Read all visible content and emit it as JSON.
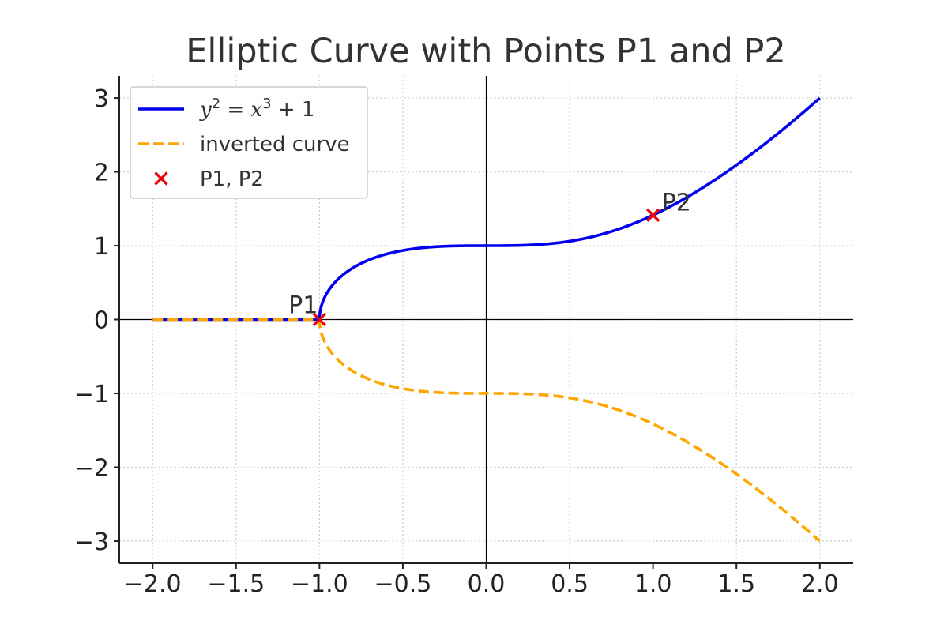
{
  "chart_data": {
    "type": "line",
    "title": "Elliptic Curve with Points P1 and P2",
    "xlabel": "",
    "ylabel": "",
    "xlim": [
      -2.2,
      2.2
    ],
    "ylim": [
      -3.3,
      3.3
    ],
    "grid": true,
    "legend_position": "top-left",
    "x_ticks": [
      -2.0,
      -1.5,
      -1.0,
      -0.5,
      0.0,
      0.5,
      1.0,
      1.5,
      2.0
    ],
    "x_tick_labels": [
      "−2.0",
      "−1.5",
      "−1.0",
      "−0.5",
      "0.0",
      "0.5",
      "1.0",
      "1.5",
      "2.0"
    ],
    "y_ticks": [
      -3,
      -2,
      -1,
      0,
      1,
      2,
      3
    ],
    "y_tick_labels": [
      "−3",
      "−2",
      "−1",
      "0",
      "1",
      "2",
      "3"
    ],
    "series": [
      {
        "name": "y² = x³ + 1",
        "legend_math": {
          "base1": "y",
          "exp1": "2",
          "eq": " = ",
          "base2": "x",
          "exp2": "3",
          "rest": " + 1"
        },
        "color": "#0000ee",
        "style": "solid",
        "function": "sqrt(x^3 + 1)",
        "x_range": [
          -2.0,
          2.0
        ]
      },
      {
        "name": "inverted curve",
        "color": "#ffa500",
        "style": "dashed",
        "function": "-sqrt(x^3 + 1)",
        "x_range": [
          -2.0,
          2.0
        ]
      }
    ],
    "points": {
      "name": "P1, P2",
      "color": "#ee0000",
      "marker": "x",
      "items": [
        {
          "label": "P1",
          "x": -1.0,
          "y": 0.0
        },
        {
          "label": "P2",
          "x": 1.0,
          "y": 1.414
        }
      ]
    }
  }
}
